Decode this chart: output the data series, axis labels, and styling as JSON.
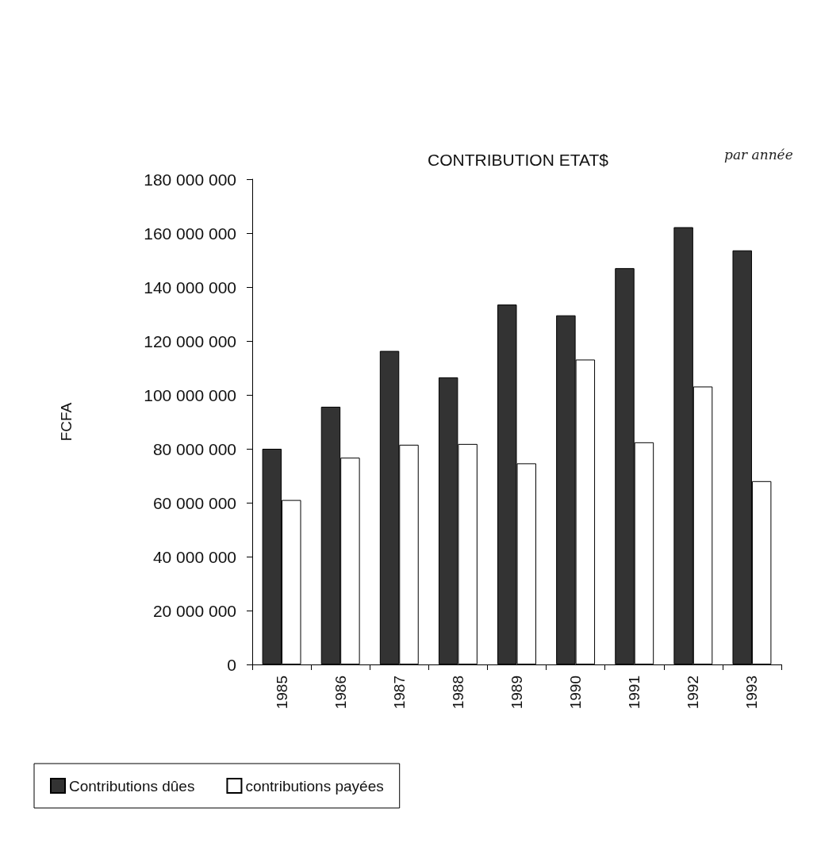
{
  "chart_data": {
    "type": "bar",
    "title": "CONTRIBUTION ETAT$",
    "annotations": [
      "par année"
    ],
    "ylabel": "FCFA",
    "categories": [
      "1985",
      "1986",
      "1987",
      "1988",
      "1989",
      "1990",
      "1991",
      "1992",
      "1993"
    ],
    "series": [
      {
        "name": "Contributions dûes",
        "color": "#333333",
        "values": [
          80000000,
          95600000,
          116300000,
          106500000,
          133500000,
          129500000,
          147000000,
          162200000,
          153600000
        ]
      },
      {
        "name": "contributions payées",
        "color": "#ffffff",
        "values": [
          61000000,
          76700000,
          81500000,
          81800000,
          74600000,
          113100000,
          82400000,
          103100000,
          68000000
        ]
      }
    ],
    "ylim": [
      0,
      180000000
    ],
    "yticks": [
      {
        "value": 0,
        "label": "0"
      },
      {
        "value": 20000000,
        "label": "20 000 000"
      },
      {
        "value": 40000000,
        "label": "40 000 000"
      },
      {
        "value": 60000000,
        "label": "60 000 000"
      },
      {
        "value": 80000000,
        "label": "80 000 000"
      },
      {
        "value": 100000000,
        "label": "100 000 000"
      },
      {
        "value": 120000000,
        "label": "120 000 000"
      },
      {
        "value": 140000000,
        "label": "140 000 000"
      },
      {
        "value": 160000000,
        "label": "160 000 000"
      },
      {
        "value": 180000000,
        "label": "180 000 000"
      }
    ],
    "grid": false,
    "legend": "bottom left"
  }
}
